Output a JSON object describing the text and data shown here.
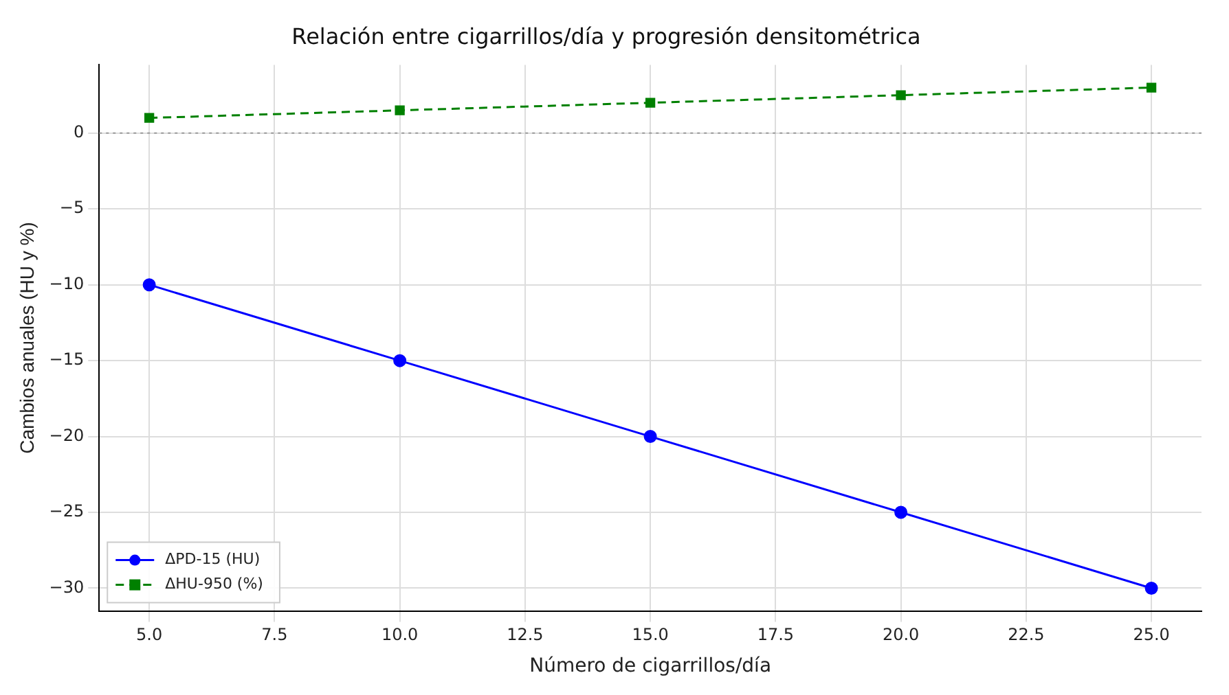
{
  "chart_data": {
    "type": "line",
    "title": "Relación entre cigarrillos/día y progresión densitométrica",
    "xlabel": "Número de cigarrillos/día",
    "ylabel": "Cambios anuales (HU y %)",
    "x": [
      5,
      10,
      15,
      20,
      25
    ],
    "series": [
      {
        "name": "ΔPD-15 (HU)",
        "color": "#0000ff",
        "values": [
          -10,
          -15,
          -20,
          -25,
          -30
        ],
        "marker": "circle",
        "line_style": "solid"
      },
      {
        "name": "ΔHU-950 (%)",
        "color": "#008000",
        "values": [
          1,
          1.5,
          2,
          2.5,
          3
        ],
        "marker": "square",
        "line_style": "dashed"
      }
    ],
    "xlim": [
      4,
      26
    ],
    "xticks": [
      {
        "value": 5,
        "label": "5.0"
      },
      {
        "value": 7.5,
        "label": "7.5"
      },
      {
        "value": 10,
        "label": "10.0"
      },
      {
        "value": 12.5,
        "label": "12.5"
      },
      {
        "value": 15,
        "label": "15.0"
      },
      {
        "value": 17.5,
        "label": "17.5"
      },
      {
        "value": 20,
        "label": "20.0"
      },
      {
        "value": 22.5,
        "label": "22.5"
      },
      {
        "value": 25,
        "label": "25.0"
      }
    ],
    "ylim": [
      -31.5,
      4.5
    ],
    "yticks": [
      {
        "value": -30,
        "label": "−30"
      },
      {
        "value": -25,
        "label": "−25"
      },
      {
        "value": -20,
        "label": "−20"
      },
      {
        "value": -15,
        "label": "−15"
      },
      {
        "value": -10,
        "label": "−10"
      },
      {
        "value": -5,
        "label": "−5"
      },
      0
    ],
    "ref_lines": [
      {
        "axis": "y",
        "value": 0,
        "color": "#999999",
        "line_style": "dotted"
      }
    ],
    "grid": true,
    "legend": "bottom left"
  }
}
